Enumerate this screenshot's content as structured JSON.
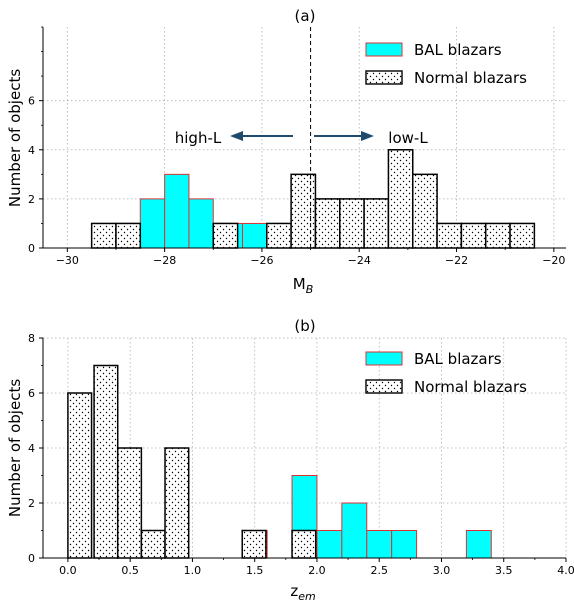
{
  "colors": {
    "bal_fill": "#00ffff",
    "bal_edge": "#e03030",
    "normal_fill": "#ffffff",
    "normal_edge": "#000000",
    "grid": "#b0b0b0"
  },
  "chart_data": [
    {
      "type": "bar",
      "title": "(a)",
      "xlabel_main": "M",
      "xlabel_sub": "B",
      "ylabel": "Number of objects",
      "xlim": [
        -30.5,
        -19.75
      ],
      "ylim": [
        0,
        9
      ],
      "xticks": [
        -30,
        -28,
        -26,
        -24,
        -22,
        -20
      ],
      "xtick_labels": [
        "−30",
        "−28",
        "−26",
        "−24",
        "−22",
        "−20"
      ],
      "yticks": [
        0,
        2,
        4,
        6
      ],
      "ytick_labels": [
        "0",
        "2",
        "4",
        "6"
      ],
      "grid": true,
      "legend_position": "top-right",
      "divider_x": -25.0,
      "annotations": {
        "left": "high-L",
        "right": "low-L"
      },
      "series": [
        {
          "name": "BAL blazars",
          "style": "bal",
          "bins": [
            {
              "x0": -29.0,
              "x1": -28.5,
              "y": 1
            },
            {
              "x0": -28.5,
              "x1": -28.0,
              "y": 2
            },
            {
              "x0": -28.0,
              "x1": -27.5,
              "y": 3
            },
            {
              "x0": -27.5,
              "x1": -27.0,
              "y": 2
            },
            {
              "x0": -26.9,
              "x1": -26.4,
              "y": 1
            },
            {
              "x0": -26.4,
              "x1": -25.9,
              "y": 1
            }
          ]
        },
        {
          "name": "Normal blazars",
          "style": "normal",
          "bins": [
            {
              "x0": -29.5,
              "x1": -29.0,
              "y": 1
            },
            {
              "x0": -29.0,
              "x1": -28.5,
              "y": 1
            },
            {
              "x0": -27.0,
              "x1": -26.5,
              "y": 1
            },
            {
              "x0": -25.9,
              "x1": -25.4,
              "y": 1
            },
            {
              "x0": -25.4,
              "x1": -24.9,
              "y": 3
            },
            {
              "x0": -24.9,
              "x1": -24.4,
              "y": 2
            },
            {
              "x0": -24.4,
              "x1": -23.9,
              "y": 2
            },
            {
              "x0": -23.9,
              "x1": -23.4,
              "y": 2
            },
            {
              "x0": -23.4,
              "x1": -22.9,
              "y": 4
            },
            {
              "x0": -22.9,
              "x1": -22.4,
              "y": 3
            },
            {
              "x0": -22.4,
              "x1": -21.9,
              "y": 1
            },
            {
              "x0": -21.9,
              "x1": -21.4,
              "y": 1
            },
            {
              "x0": -21.4,
              "x1": -20.9,
              "y": 1
            },
            {
              "x0": -20.9,
              "x1": -20.4,
              "y": 1
            }
          ]
        }
      ]
    },
    {
      "type": "bar",
      "title": "(b)",
      "xlabel_main": "z",
      "xlabel_sub": "em",
      "ylabel": "Number of objects",
      "xlim": [
        -0.2,
        4.0
      ],
      "ylim": [
        0,
        8
      ],
      "xticks": [
        0.0,
        0.5,
        1.0,
        1.5,
        2.0,
        2.5,
        3.0,
        3.5,
        4.0
      ],
      "xtick_labels": [
        "0.0",
        "0.5",
        "1.0",
        "1.5",
        "2.0",
        "2.5",
        "3.0",
        "3.5",
        "4.0"
      ],
      "yticks": [
        0,
        2,
        4,
        6,
        8
      ],
      "ytick_labels": [
        "0",
        "2",
        "4",
        "6",
        "8"
      ],
      "grid": true,
      "legend_position": "top-right",
      "series": [
        {
          "name": "BAL blazars",
          "style": "bal",
          "bins": [
            {
              "x0": 1.4,
              "x1": 1.6,
              "y": 1
            },
            {
              "x0": 1.8,
              "x1": 2.0,
              "y": 3
            },
            {
              "x0": 2.0,
              "x1": 2.2,
              "y": 1
            },
            {
              "x0": 2.2,
              "x1": 2.4,
              "y": 2
            },
            {
              "x0": 2.4,
              "x1": 2.6,
              "y": 1
            },
            {
              "x0": 2.6,
              "x1": 2.8,
              "y": 1
            },
            {
              "x0": 3.2,
              "x1": 3.4,
              "y": 1
            }
          ]
        },
        {
          "name": "Normal blazars",
          "style": "normal",
          "bins": [
            {
              "x0": 0.0,
              "x1": 0.19,
              "y": 6
            },
            {
              "x0": 0.21,
              "x1": 0.4,
              "y": 7
            },
            {
              "x0": 0.4,
              "x1": 0.59,
              "y": 4
            },
            {
              "x0": 0.59,
              "x1": 0.78,
              "y": 1
            },
            {
              "x0": 0.78,
              "x1": 0.97,
              "y": 4
            },
            {
              "x0": 0.97,
              "x1": 1.16,
              "y": 0
            },
            {
              "x0": 1.16,
              "x1": 1.35,
              "y": 0
            },
            {
              "x0": 1.4,
              "x1": 1.59,
              "y": 1
            },
            {
              "x0": 1.59,
              "x1": 1.78,
              "y": 0
            },
            {
              "x0": 1.8,
              "x1": 1.99,
              "y": 1
            },
            {
              "x0": 1.99,
              "x1": 2.18,
              "y": 0
            },
            {
              "x0": 2.18,
              "x1": 2.37,
              "y": 0
            },
            {
              "x0": 2.37,
              "x1": 2.56,
              "y": 0
            },
            {
              "x0": 2.56,
              "x1": 2.75,
              "y": 0
            },
            {
              "x0": 2.75,
              "x1": 2.94,
              "y": 0
            },
            {
              "x0": 2.94,
              "x1": 3.13,
              "y": 0
            },
            {
              "x0": 3.13,
              "x1": 3.32,
              "y": 0
            },
            {
              "x0": 3.32,
              "x1": 3.51,
              "y": 0
            },
            {
              "x0": 3.51,
              "x1": 3.7,
              "y": 0
            },
            {
              "x0": 3.7,
              "x1": 3.89,
              "y": 0
            }
          ]
        }
      ]
    }
  ]
}
